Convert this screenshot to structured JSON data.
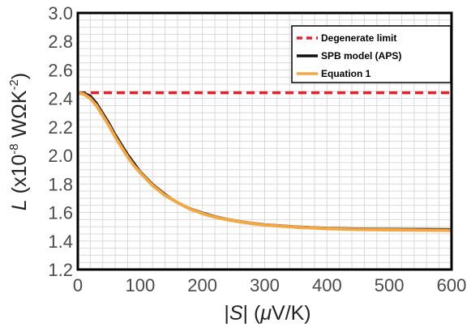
{
  "chart_data": {
    "type": "line",
    "title": "",
    "xlabel": {
      "prefix": "|",
      "var": "S",
      "suffix": "| (",
      "unit_greek": "μ",
      "unit": "V/K)"
    },
    "ylabel": {
      "var": "L",
      "pre": " (x10",
      "exp1": "-8",
      "mid": " WΩK",
      "exp2": "-2",
      "post": ")"
    },
    "xlim": [
      0,
      600
    ],
    "ylim": [
      1.2,
      3.0
    ],
    "x_ticks": [
      "0",
      "100",
      "200",
      "300",
      "400",
      "500",
      "600"
    ],
    "y_ticks": [
      "1.2",
      "1.4",
      "1.6",
      "1.8",
      "2.0",
      "2.2",
      "2.4",
      "2.6",
      "2.8",
      "3.0"
    ],
    "grid": true,
    "legend_position": "top-right",
    "series": [
      {
        "name": "Degenerate limit",
        "color": "#e8202a",
        "style": "dashed",
        "x": [
          0,
          600
        ],
        "y": [
          2.44,
          2.44
        ]
      },
      {
        "name": "SPB model (APS)",
        "color": "#111111",
        "style": "solid",
        "x": [
          0,
          10,
          20,
          30,
          40,
          50,
          60,
          70,
          80,
          90,
          100,
          120,
          140,
          160,
          180,
          200,
          220,
          240,
          260,
          280,
          300,
          350,
          400,
          450,
          500,
          550,
          600
        ],
        "y": [
          2.44,
          2.44,
          2.42,
          2.37,
          2.3,
          2.23,
          2.15,
          2.08,
          2.01,
          1.95,
          1.89,
          1.8,
          1.73,
          1.67,
          1.63,
          1.6,
          1.574,
          1.555,
          1.54,
          1.527,
          1.517,
          1.502,
          1.492,
          1.487,
          1.485,
          1.484,
          1.483
        ]
      },
      {
        "name": "Equation 1",
        "color": "#f4a742",
        "style": "solid",
        "x": [
          0,
          10,
          20,
          30,
          40,
          50,
          60,
          70,
          80,
          90,
          100,
          120,
          140,
          160,
          180,
          200,
          220,
          240,
          260,
          280,
          300,
          350,
          400,
          450,
          500,
          550,
          600
        ],
        "y": [
          2.44,
          2.43,
          2.4,
          2.35,
          2.28,
          2.21,
          2.13,
          2.06,
          1.99,
          1.93,
          1.88,
          1.79,
          1.72,
          1.67,
          1.625,
          1.593,
          1.568,
          1.55,
          1.535,
          1.522,
          1.512,
          1.497,
          1.487,
          1.481,
          1.478,
          1.476,
          1.475
        ]
      }
    ]
  }
}
